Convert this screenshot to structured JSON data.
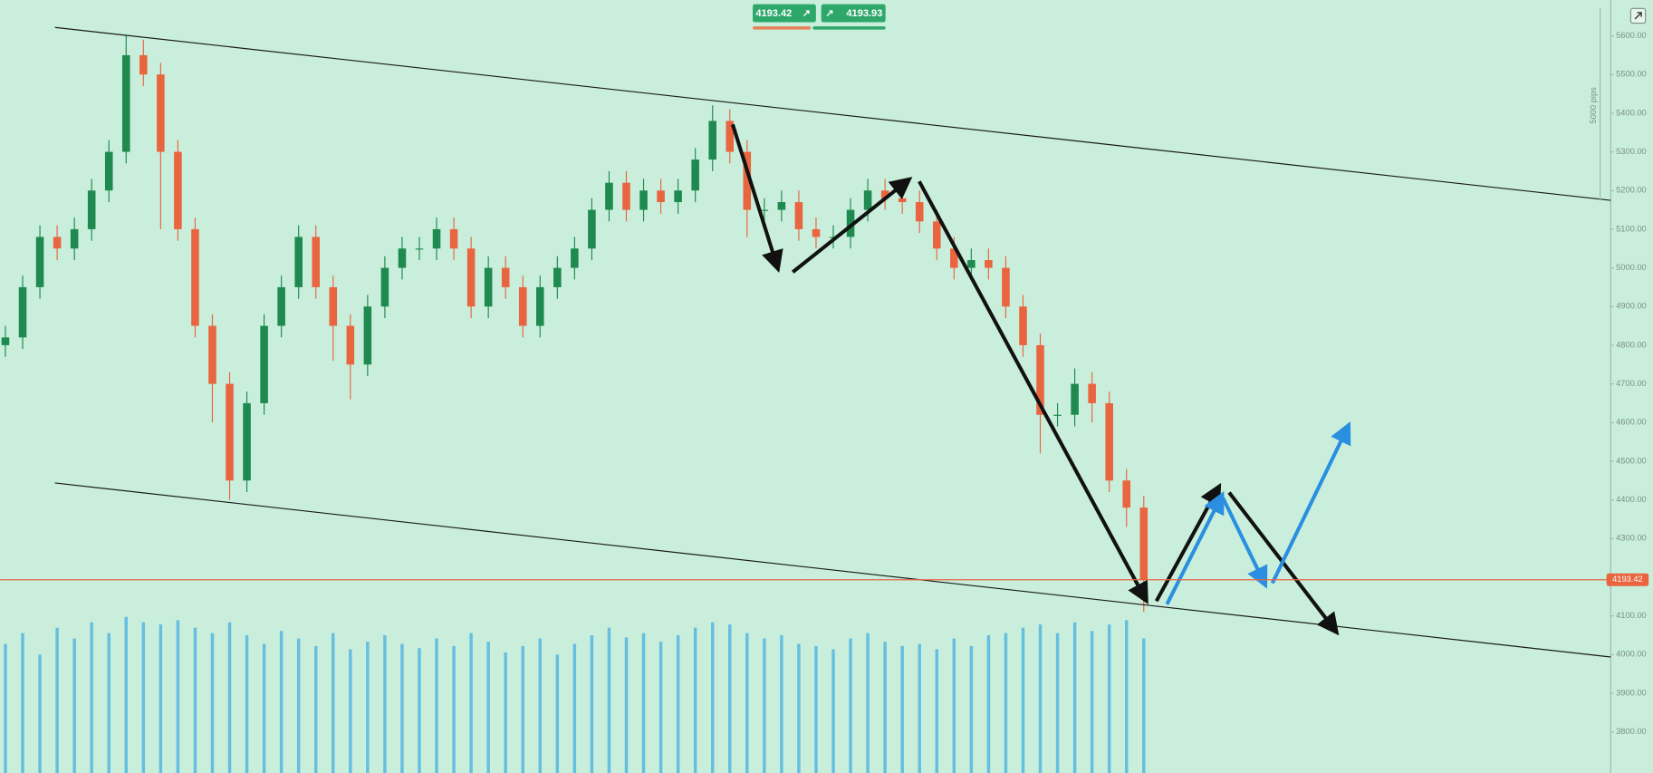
{
  "toolbar": {
    "sell_price": "4193.42",
    "buy_price": "4193.93",
    "range_label": "5000 pips"
  },
  "chart_data": {
    "type": "candlestick",
    "open": [
      4800,
      4820,
      4950,
      5080,
      5050,
      5100,
      5200,
      5300,
      5550,
      5500,
      5300,
      5100,
      4850,
      4700,
      4450,
      4650,
      4850,
      4950,
      5080,
      4950,
      4850,
      4750,
      4900,
      5000,
      5050,
      5050,
      5100,
      5050,
      4900,
      5000,
      4950,
      4850,
      4950,
      5000,
      5050,
      5150,
      5220,
      5150,
      5200,
      5170,
      5200,
      5280,
      5380,
      5300,
      5150,
      5150,
      5170,
      5100,
      5080,
      5080,
      5150,
      5200,
      5180,
      5170,
      5120,
      5050,
      5000,
      5020,
      5000,
      4900,
      4800,
      4620,
      4620,
      4700,
      4650,
      4450,
      4380
    ],
    "high": [
      4850,
      4980,
      5110,
      5110,
      5130,
      5230,
      5330,
      5600,
      5590,
      5530,
      5330,
      5130,
      4880,
      4730,
      4680,
      4880,
      4980,
      5110,
      5110,
      4980,
      4880,
      4930,
      5030,
      5080,
      5080,
      5130,
      5130,
      5080,
      5030,
      5030,
      4980,
      4980,
      5030,
      5080,
      5180,
      5250,
      5250,
      5230,
      5230,
      5230,
      5310,
      5420,
      5410,
      5330,
      5180,
      5200,
      5200,
      5130,
      5110,
      5180,
      5230,
      5230,
      5210,
      5200,
      5150,
      5080,
      5050,
      5050,
      5030,
      4930,
      4830,
      4650,
      4740,
      4730,
      4680,
      4480,
      4410
    ],
    "low": [
      4770,
      4790,
      4920,
      5020,
      5020,
      5070,
      5170,
      5270,
      5470,
      5100,
      5070,
      4820,
      4600,
      4400,
      4420,
      4620,
      4820,
      4920,
      4920,
      4760,
      4660,
      4720,
      4870,
      4970,
      5020,
      5020,
      5020,
      4870,
      4870,
      4920,
      4820,
      4820,
      4920,
      4970,
      5020,
      5120,
      5120,
      5120,
      5140,
      5140,
      5170,
      5250,
      5270,
      5080,
      5120,
      5120,
      5070,
      5050,
      5050,
      5050,
      5120,
      5150,
      5140,
      5090,
      5020,
      4970,
      4970,
      4970,
      4870,
      4770,
      4520,
      4590,
      4590,
      4600,
      4420,
      4330,
      4110
    ],
    "close": [
      4820,
      4950,
      5080,
      5050,
      5100,
      5200,
      5300,
      5550,
      5500,
      5300,
      5100,
      4850,
      4700,
      4450,
      4650,
      4850,
      4950,
      5080,
      4950,
      4850,
      4750,
      4900,
      5000,
      5050,
      5050,
      5100,
      5050,
      4900,
      5000,
      4950,
      4850,
      4950,
      5000,
      5050,
      5150,
      5220,
      5150,
      5200,
      5170,
      5200,
      5280,
      5380,
      5300,
      5150,
      5150,
      5170,
      5100,
      5080,
      5080,
      5150,
      5200,
      5180,
      5170,
      5120,
      5050,
      5000,
      5020,
      5000,
      4900,
      4800,
      4620,
      4620,
      4700,
      4650,
      4450,
      4380,
      4193.42
    ],
    "volume": [
      120,
      130,
      110,
      135,
      125,
      140,
      130,
      145,
      140,
      138,
      142,
      135,
      130,
      140,
      128,
      120,
      132,
      125,
      118,
      130,
      115,
      122,
      128,
      120,
      116,
      125,
      118,
      130,
      122,
      112,
      118,
      125,
      110,
      120,
      128,
      135,
      126,
      130,
      122,
      128,
      135,
      140,
      138,
      130,
      125,
      128,
      120,
      118,
      115,
      125,
      130,
      122,
      118,
      120,
      115,
      125,
      118,
      128,
      130,
      135,
      138,
      130,
      140,
      132,
      138,
      142,
      125
    ],
    "up_color": "#1f8a4f",
    "down_color": "#e8653f",
    "volume_color": "#4fb3e0",
    "current_price": 4193.42,
    "current_price_color": "#e8653f",
    "ylim": [
      3693.6,
      5692.7
    ],
    "yticks": [
      {
        "value": 3800,
        "label": "3800.00"
      },
      {
        "value": 3900,
        "label": "3900.00"
      },
      {
        "value": 4000,
        "label": "4000.00"
      },
      {
        "value": 4100,
        "label": "4100.00"
      },
      {
        "value": 4200,
        "label": "4200.00"
      },
      {
        "value": 4300,
        "label": "4300.00"
      },
      {
        "value": 4400,
        "label": "4400.00"
      },
      {
        "value": 4500,
        "label": "4500.00"
      },
      {
        "value": 4600,
        "label": "4600.00"
      },
      {
        "value": 4700,
        "label": "4700.00"
      },
      {
        "value": 4800,
        "label": "4800.00"
      },
      {
        "value": 4900,
        "label": "4900.00"
      },
      {
        "value": 5000,
        "label": "5000.00"
      },
      {
        "value": 5100,
        "label": "5100.00"
      },
      {
        "value": 5200,
        "label": "5200.00"
      },
      {
        "value": 5300,
        "label": "5300.00"
      },
      {
        "value": 5400,
        "label": "5400.00"
      },
      {
        "value": 5500,
        "label": "5500.00"
      },
      {
        "value": 5600,
        "label": "5600.00"
      }
    ]
  }
}
